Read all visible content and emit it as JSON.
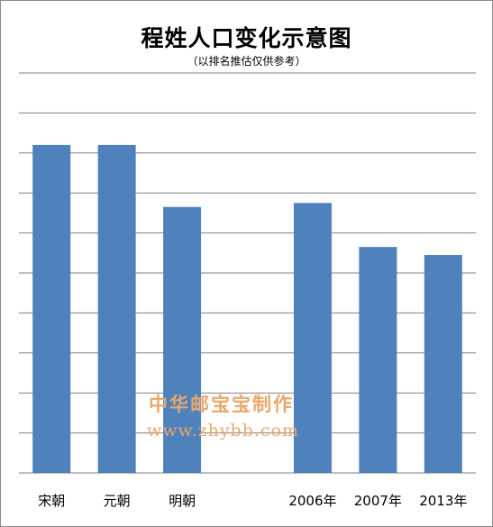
{
  "chart_data": {
    "type": "bar",
    "title": "程姓人口变化示意图",
    "subtitle": "（以排名推估仅供参考）",
    "categories": [
      "宋朝",
      "元朝",
      "明朝",
      "",
      "2006年",
      "2007年",
      "2013年"
    ],
    "values": [
      8.2,
      8.2,
      6.65,
      null,
      6.75,
      5.65,
      5.45
    ],
    "ylim": [
      0,
      10
    ],
    "grid": true,
    "bar_color": "#4f81bd",
    "grid_color": "#808080",
    "xlabel": "",
    "ylabel": ""
  },
  "watermark": {
    "text": "中华邮宝宝制作",
    "url": "www.zhybb.com",
    "color": "#e8a86b"
  }
}
